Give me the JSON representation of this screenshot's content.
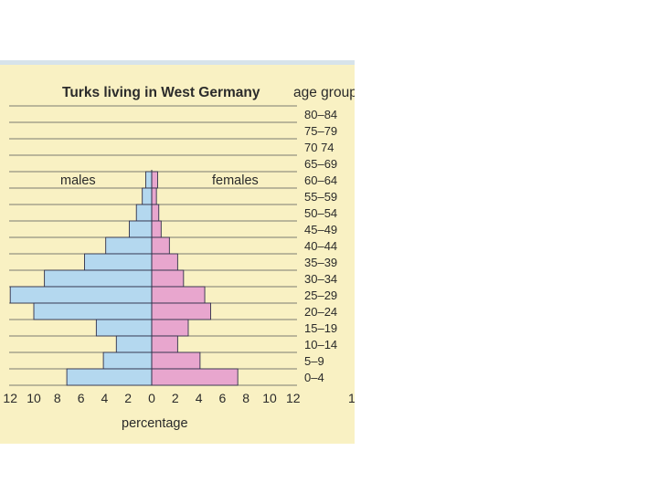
{
  "chart_data": {
    "type": "bar",
    "orientation": "horizontal",
    "title": "Turks living in West Germany",
    "age_group_header": "age group",
    "xlabel": "percentage",
    "categories": [
      "80–84",
      "75–79",
      "70 74",
      "65–69",
      "60–64",
      "55–59",
      "50–54",
      "45–49",
      "40–44",
      "35–39",
      "30–34",
      "25–29",
      "20–24",
      "15–19",
      "10–14",
      "5–9",
      "0–4"
    ],
    "series": [
      {
        "name": "males",
        "color": "#b4d8ef",
        "values": [
          0,
          0,
          0,
          0,
          0.5,
          0.8,
          1.3,
          1.9,
          3.9,
          5.7,
          9.1,
          12.0,
          10.0,
          4.7,
          3.0,
          4.1,
          7.2
        ]
      },
      {
        "name": "females",
        "color": "#e8a6ce",
        "values": [
          0,
          0,
          0,
          0,
          0.5,
          0.4,
          0.6,
          0.8,
          1.5,
          2.2,
          2.7,
          4.5,
          5.0,
          3.1,
          2.2,
          4.1,
          7.3
        ]
      }
    ],
    "x_ticks_left": [
      "12",
      "10",
      "8",
      "6",
      "4",
      "2",
      "0"
    ],
    "x_ticks_right": [
      "2",
      "4",
      "6",
      "8",
      "10",
      "12"
    ],
    "x_tick_truncated": "1.",
    "xlim": [
      -12,
      12
    ]
  }
}
